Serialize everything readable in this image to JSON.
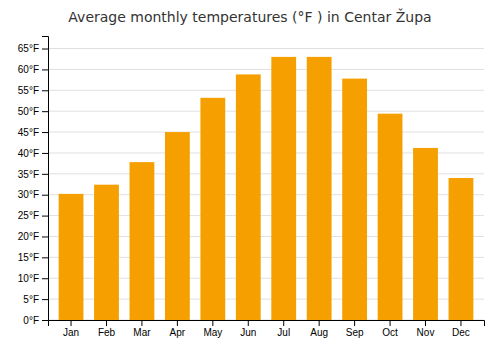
{
  "chart_data": {
    "type": "bar",
    "title": "Average monthly temperatures (°F ) in Centar Župa",
    "categories": [
      "Jan",
      "Feb",
      "Mar",
      "Apr",
      "May",
      "Jun",
      "Jul",
      "Aug",
      "Sep",
      "Oct",
      "Nov",
      "Dec"
    ],
    "values": [
      30.2,
      32.4,
      37.8,
      45.0,
      53.2,
      58.8,
      63.0,
      63.0,
      57.8,
      49.4,
      41.2,
      34.0
    ],
    "color": "#F5A000",
    "ylim": [
      0,
      68
    ],
    "yticks": [
      {
        "value": 0,
        "label": "0°F"
      },
      {
        "value": 5,
        "label": "5°F"
      },
      {
        "value": 10,
        "label": "10°F"
      },
      {
        "value": 15,
        "label": "15°F"
      },
      {
        "value": 20,
        "label": "20°F"
      },
      {
        "value": 25,
        "label": "25°F"
      },
      {
        "value": 30,
        "label": "30°F"
      },
      {
        "value": 35,
        "label": "35°F"
      },
      {
        "value": 40,
        "label": "40°F"
      },
      {
        "value": 45,
        "label": "45°F"
      },
      {
        "value": 50,
        "label": "50°F"
      },
      {
        "value": 55,
        "label": "55°F"
      },
      {
        "value": 60,
        "label": "60°F"
      },
      {
        "value": 65,
        "label": "65°F"
      }
    ],
    "grid": true
  }
}
